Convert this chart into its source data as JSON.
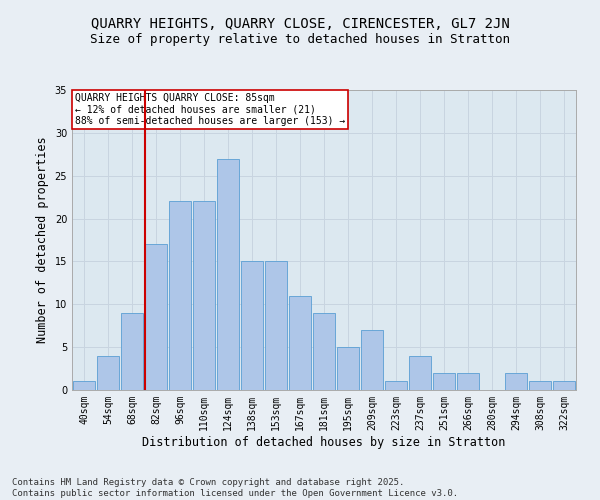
{
  "title1": "QUARRY HEIGHTS, QUARRY CLOSE, CIRENCESTER, GL7 2JN",
  "title2": "Size of property relative to detached houses in Stratton",
  "xlabel": "Distribution of detached houses by size in Stratton",
  "ylabel": "Number of detached properties",
  "bin_labels": [
    "40sqm",
    "54sqm",
    "68sqm",
    "82sqm",
    "96sqm",
    "110sqm",
    "124sqm",
    "138sqm",
    "153sqm",
    "167sqm",
    "181sqm",
    "195sqm",
    "209sqm",
    "223sqm",
    "237sqm",
    "251sqm",
    "266sqm",
    "280sqm",
    "294sqm",
    "308sqm",
    "322sqm"
  ],
  "bar_heights": [
    1,
    4,
    9,
    17,
    22,
    22,
    27,
    15,
    15,
    11,
    9,
    5,
    7,
    1,
    4,
    2,
    2,
    0,
    2,
    1,
    1
  ],
  "bar_color": "#aec6e8",
  "bar_edge_color": "#5a9fd4",
  "vline_x_index": 3,
  "vline_color": "#cc0000",
  "annotation_text": "QUARRY HEIGHTS QUARRY CLOSE: 85sqm\n← 12% of detached houses are smaller (21)\n88% of semi-detached houses are larger (153) →",
  "annotation_box_color": "#ffffff",
  "annotation_box_edge": "#cc0000",
  "ylim": [
    0,
    35
  ],
  "yticks": [
    0,
    5,
    10,
    15,
    20,
    25,
    30,
    35
  ],
  "grid_color": "#c8d4e0",
  "background_color": "#dce8f0",
  "fig_background": "#e8eef4",
  "footer_text": "Contains HM Land Registry data © Crown copyright and database right 2025.\nContains public sector information licensed under the Open Government Licence v3.0.",
  "title_fontsize": 10,
  "subtitle_fontsize": 9,
  "axis_label_fontsize": 8.5,
  "tick_fontsize": 7,
  "footer_fontsize": 6.5,
  "annotation_fontsize": 7
}
